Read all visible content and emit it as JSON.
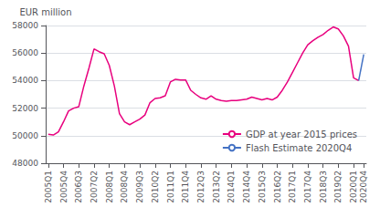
{
  "chart_data": {
    "type": "line",
    "ylabel": "EUR million",
    "categories": [
      "2005Q1",
      null,
      null,
      "2005Q4",
      null,
      null,
      "2006Q3",
      null,
      null,
      "2007Q2",
      null,
      null,
      "2008Q1",
      null,
      null,
      "2008Q4",
      null,
      null,
      "2009Q3",
      null,
      null,
      "2010Q2",
      null,
      null,
      "2011Q1",
      null,
      null,
      "2011Q4",
      null,
      null,
      "2012Q3",
      null,
      null,
      "2013Q2",
      null,
      null,
      "2014Q1",
      null,
      null,
      "2014Q4",
      null,
      null,
      "2015Q3",
      null,
      null,
      "2016Q2",
      null,
      null,
      "2017Q1",
      null,
      null,
      "2017Q4",
      null,
      null,
      "2018Q3",
      null,
      null,
      "2019Q2",
      null,
      null,
      "2020Q1",
      null,
      "2020Q4"
    ],
    "series": [
      {
        "name": "GDP at year 2015 prices",
        "color": "#e8007e",
        "values": [
          50100,
          50050,
          50280,
          51000,
          51800,
          52000,
          52100,
          53600,
          54900,
          56300,
          56100,
          55950,
          55100,
          53600,
          51600,
          51000,
          50800,
          51000,
          51200,
          51500,
          52400,
          52700,
          52750,
          52900,
          53900,
          54100,
          54050,
          54050,
          53300,
          53000,
          52750,
          52650,
          52900,
          52650,
          52550,
          52500,
          52550,
          52550,
          52600,
          52650,
          52800,
          52700,
          52600,
          52700,
          52600,
          52800,
          53300,
          53900,
          54600,
          55300,
          56000,
          56600,
          56900,
          57150,
          57350,
          57650,
          57900,
          57750,
          57250,
          56500,
          54200,
          54000,
          null
        ]
      },
      {
        "name": "Flash Estimate 2020Q4",
        "color": "#4472c4",
        "values": [
          null,
          null,
          null,
          null,
          null,
          null,
          null,
          null,
          null,
          null,
          null,
          null,
          null,
          null,
          null,
          null,
          null,
          null,
          null,
          null,
          null,
          null,
          null,
          null,
          null,
          null,
          null,
          null,
          null,
          null,
          null,
          null,
          null,
          null,
          null,
          null,
          null,
          null,
          null,
          null,
          null,
          null,
          null,
          null,
          null,
          null,
          null,
          null,
          null,
          null,
          null,
          null,
          null,
          null,
          null,
          null,
          null,
          null,
          null,
          null,
          null,
          54000,
          55900
        ]
      }
    ],
    "ylim": [
      48000,
      58000
    ],
    "yticks": [
      48000,
      50000,
      52000,
      54000,
      56000,
      58000
    ],
    "grid": true,
    "legend": "lower right"
  }
}
